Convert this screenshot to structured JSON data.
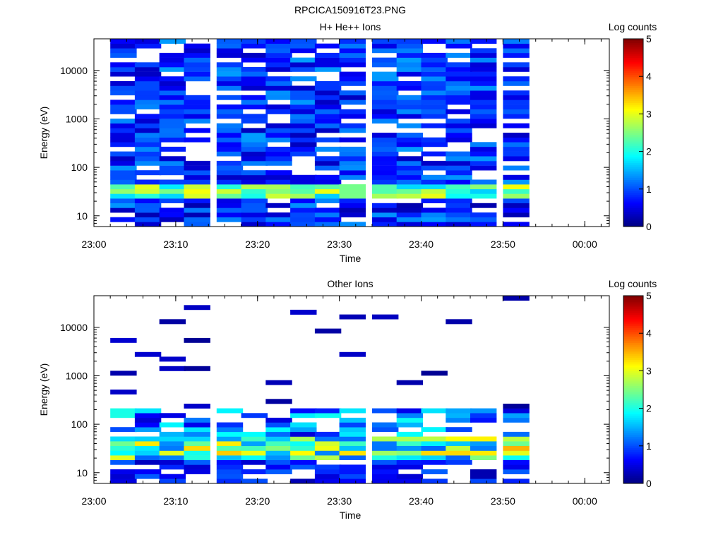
{
  "figure": {
    "title": "RPCICA150916T23.PNG"
  },
  "chart_data": [
    {
      "type": "heatmap",
      "title": "H+ He++ Ions",
      "xlabel": "Time",
      "ylabel": "Energy (eV)",
      "x_ticks": [
        "23:00",
        "23:10",
        "23:20",
        "23:30",
        "23:40",
        "23:50",
        "00:00"
      ],
      "xlim": [
        "23:00",
        "00:03"
      ],
      "y_scale": "log",
      "y_ticks": [
        "10",
        "100",
        "1000",
        "10000"
      ],
      "ylim": [
        6,
        45000
      ],
      "time_bins": [
        "23:02",
        "23:05",
        "23:08",
        "23:11",
        "23:15",
        "23:18",
        "23:21",
        "23:24",
        "23:27",
        "23:30",
        "23:34",
        "23:37",
        "23:40",
        "23:43",
        "23:46",
        "23:50"
      ],
      "energy_range_ev": [
        6,
        45000
      ],
      "z_pattern": "dense blue (log counts ~0.3-1.5) spanning all energies at every time step; enhanced counts (~1.8-3.0) near 25-45 eV; white gaps mark bins with no counts",
      "colorbar": {
        "label": "Log counts",
        "ticks": [
          "0",
          "1",
          "2",
          "3",
          "4",
          "5"
        ],
        "range": [
          0,
          5
        ]
      }
    },
    {
      "type": "heatmap",
      "title": "Other Ions",
      "xlabel": "Time",
      "ylabel": "Energy (eV)",
      "x_ticks": [
        "23:00",
        "23:10",
        "23:20",
        "23:30",
        "23:40",
        "23:50",
        "00:00"
      ],
      "xlim": [
        "23:00",
        "00:03"
      ],
      "y_scale": "log",
      "y_ticks": [
        "10",
        "100",
        "1000",
        "10000"
      ],
      "ylim": [
        6,
        45000
      ],
      "time_bins": [
        "23:02",
        "23:05",
        "23:08",
        "23:11",
        "23:15",
        "23:18",
        "23:21",
        "23:24",
        "23:27",
        "23:30",
        "23:34",
        "23:37",
        "23:40",
        "23:43",
        "23:46",
        "23:50"
      ],
      "energy_range_ev": [
        6,
        45000
      ],
      "z_pattern": "sparse low counts above ~200 eV; strong band at 20-60 eV with log counts up to ~4.3 (peak near 23:50)",
      "colorbar": {
        "label": "Log counts",
        "ticks": [
          "0",
          "1",
          "2",
          "3",
          "4",
          "5"
        ],
        "range": [
          0,
          5
        ]
      }
    }
  ]
}
